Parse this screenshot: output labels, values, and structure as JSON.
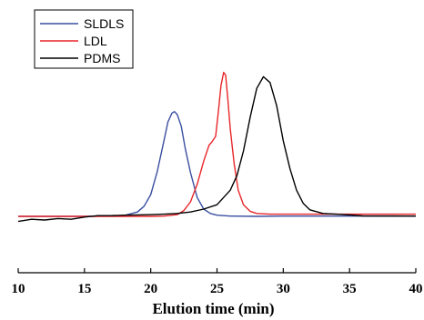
{
  "chart_data": {
    "type": "line",
    "xlabel": "Elution time (min)",
    "ylabel": "",
    "xlim": [
      10,
      40
    ],
    "ylim": [
      -0.1,
      1.0
    ],
    "x_ticks": [
      "10",
      "15",
      "20",
      "25",
      "30",
      "35",
      "40"
    ],
    "grid": false,
    "legend_position": "top-left",
    "series": [
      {
        "name": "SLDLS",
        "color": "#3a4fa0",
        "points": [
          [
            10,
            0.0
          ],
          [
            15,
            0.0
          ],
          [
            17,
            0.002
          ],
          [
            18,
            0.006
          ],
          [
            19,
            0.03
          ],
          [
            19.5,
            0.07
          ],
          [
            20,
            0.15
          ],
          [
            20.5,
            0.31
          ],
          [
            21,
            0.52
          ],
          [
            21.3,
            0.65
          ],
          [
            21.6,
            0.71
          ],
          [
            21.8,
            0.72
          ],
          [
            22,
            0.7
          ],
          [
            22.3,
            0.62
          ],
          [
            22.6,
            0.47
          ],
          [
            23,
            0.3
          ],
          [
            23.5,
            0.13
          ],
          [
            24,
            0.05
          ],
          [
            24.5,
            0.02
          ],
          [
            25,
            0.008
          ],
          [
            26,
            0.002
          ],
          [
            28,
            0.0
          ],
          [
            30,
            0.002
          ],
          [
            40,
            0.002
          ]
        ]
      },
      {
        "name": "LDL",
        "color": "#e8262a",
        "points": [
          [
            10,
            0.0
          ],
          [
            15,
            0.0
          ],
          [
            20,
            0.0
          ],
          [
            21,
            0.002
          ],
          [
            22,
            0.012
          ],
          [
            22.5,
            0.04
          ],
          [
            23,
            0.1
          ],
          [
            23.5,
            0.22
          ],
          [
            24,
            0.38
          ],
          [
            24.4,
            0.49
          ],
          [
            24.6,
            0.51
          ],
          [
            24.9,
            0.55
          ],
          [
            25.1,
            0.72
          ],
          [
            25.3,
            0.9
          ],
          [
            25.5,
            0.99
          ],
          [
            25.65,
            0.97
          ],
          [
            25.8,
            0.82
          ],
          [
            26,
            0.6
          ],
          [
            26.3,
            0.36
          ],
          [
            26.6,
            0.18
          ],
          [
            27,
            0.08
          ],
          [
            27.5,
            0.035
          ],
          [
            28,
            0.02
          ],
          [
            29,
            0.015
          ],
          [
            30,
            0.015
          ],
          [
            40,
            0.015
          ]
        ]
      },
      {
        "name": "PDMS",
        "color": "#000000",
        "points": [
          [
            10,
            -0.035
          ],
          [
            11,
            -0.02
          ],
          [
            12,
            -0.025
          ],
          [
            13,
            -0.015
          ],
          [
            14,
            -0.02
          ],
          [
            15,
            -0.005
          ],
          [
            16,
            0.005
          ],
          [
            17,
            0.005
          ],
          [
            18,
            0.008
          ],
          [
            19,
            0.01
          ],
          [
            20,
            0.012
          ],
          [
            21,
            0.015
          ],
          [
            22,
            0.02
          ],
          [
            23,
            0.03
          ],
          [
            24,
            0.05
          ],
          [
            25,
            0.08
          ],
          [
            26,
            0.18
          ],
          [
            26.5,
            0.28
          ],
          [
            27,
            0.45
          ],
          [
            27.5,
            0.68
          ],
          [
            28,
            0.88
          ],
          [
            28.5,
            0.96
          ],
          [
            29,
            0.92
          ],
          [
            29.5,
            0.76
          ],
          [
            30,
            0.52
          ],
          [
            30.5,
            0.33
          ],
          [
            31,
            0.18
          ],
          [
            31.5,
            0.09
          ],
          [
            32,
            0.045
          ],
          [
            33,
            0.02
          ],
          [
            34,
            0.015
          ],
          [
            35,
            0.01
          ],
          [
            36,
            0.003
          ],
          [
            40,
            0.002
          ]
        ]
      }
    ]
  }
}
